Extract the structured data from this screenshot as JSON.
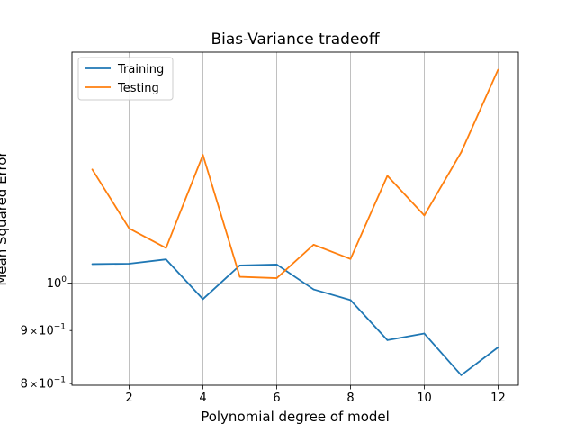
{
  "chart_data": {
    "type": "line",
    "title": "Bias-Variance tradeoff",
    "xlabel": "Polynomial degree of model",
    "ylabel": "Mean Squared Error",
    "yscale": "log",
    "xlim": [
      0.45,
      12.55
    ],
    "ylim": [
      0.797,
      1.67
    ],
    "grid": "vertical",
    "legend": "top-left",
    "x_ticks": [
      "2",
      "4",
      "6",
      "8",
      "10",
      "12"
    ],
    "y_ticks": [
      {
        "mantissa": "8",
        "exp": "−1",
        "value": 0.8
      },
      {
        "mantissa": "9",
        "exp": "−1",
        "value": 0.9
      },
      {
        "mantissa": "",
        "exp": "0",
        "value": 1.0
      }
    ],
    "x": [
      1,
      2,
      3,
      4,
      5,
      6,
      7,
      8,
      9,
      10,
      11,
      12
    ],
    "series": [
      {
        "name": "Training",
        "color": "#1f77b4",
        "values": [
          1.043,
          1.044,
          1.054,
          0.965,
          1.04,
          1.042,
          0.986,
          0.963,
          0.881,
          0.894,
          0.815,
          0.867
        ]
      },
      {
        "name": "Testing",
        "color": "#ff7f0e",
        "values": [
          1.287,
          1.129,
          1.081,
          1.329,
          1.014,
          1.011,
          1.089,
          1.055,
          1.269,
          1.162,
          1.337,
          1.606
        ]
      }
    ]
  }
}
